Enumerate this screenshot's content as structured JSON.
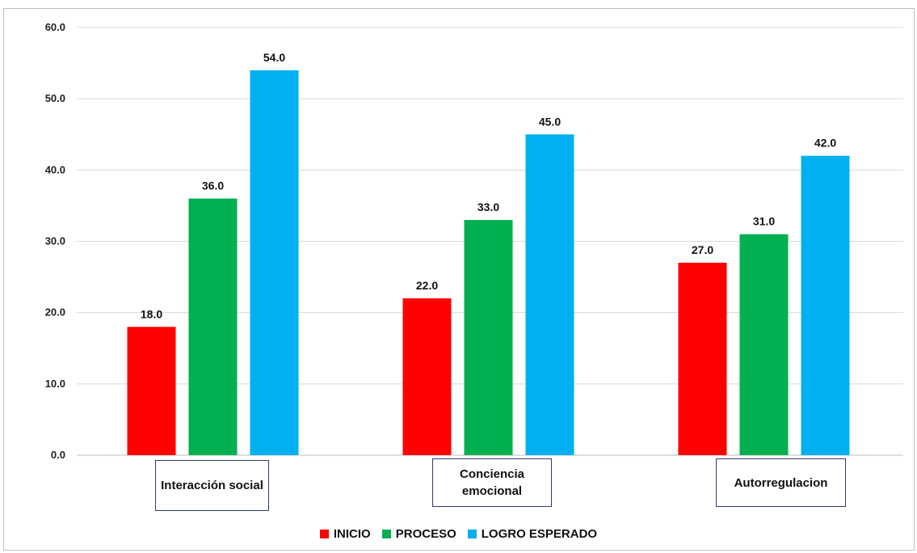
{
  "chart_data": {
    "type": "bar",
    "title": "",
    "xlabel": "",
    "ylabel": "",
    "categories": [
      "Interacción social",
      "Conciencia emocional",
      "Autorregulacion"
    ],
    "series": [
      {
        "name": "INICIO",
        "color": "#ff0000",
        "values": [
          18.0,
          22.0,
          27.0
        ],
        "labels": [
          "18.0",
          "22.0",
          "27.0"
        ]
      },
      {
        "name": "PROCESO",
        "color": "#00b050",
        "values": [
          36.0,
          33.0,
          31.0
        ],
        "labels": [
          "36.0",
          "33.0",
          "31.0"
        ]
      },
      {
        "name": "LOGRO ESPERADO",
        "color": "#00b0f0",
        "values": [
          54.0,
          45.0,
          42.0
        ],
        "labels": [
          "54.0",
          "45.0",
          "42.0"
        ]
      }
    ],
    "ylim": [
      0,
      60
    ],
    "yticks": [
      0,
      10,
      20,
      30,
      40,
      50,
      60
    ],
    "ytick_labels": [
      "0.0",
      "10.0",
      "20.0",
      "30.0",
      "40.0",
      "50.0",
      "60.0"
    ],
    "grid": true,
    "legend_position": "bottom"
  }
}
